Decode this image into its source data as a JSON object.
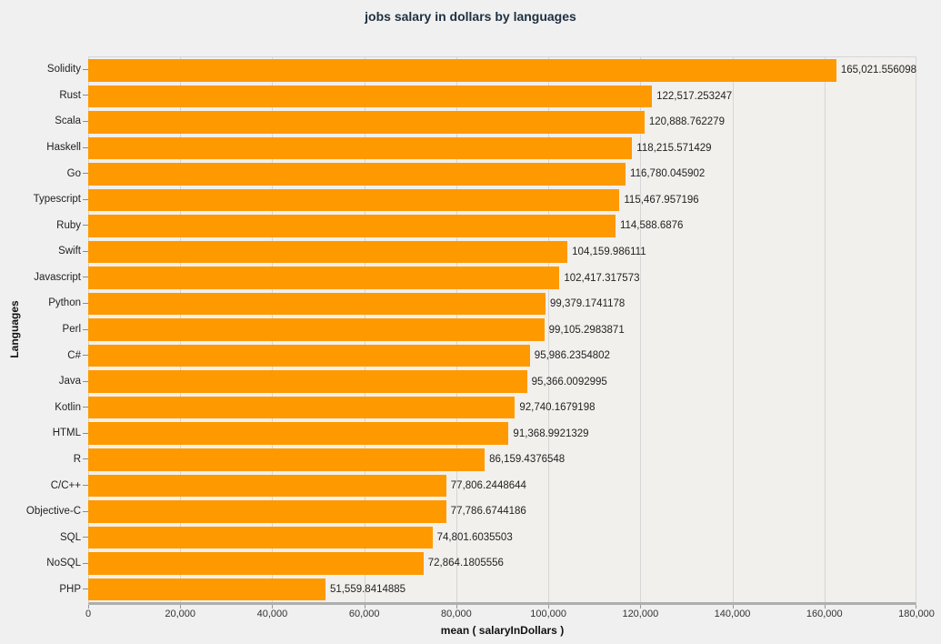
{
  "colors": {
    "bar": "#ff9900",
    "page_background": "#f0f0f0",
    "plot_background": "#f2f0ed",
    "gridline": "#d6d6d6",
    "axis_line": "#aeaeae",
    "title_text": "#1e3040",
    "label_text": "#222222"
  },
  "chart_data": {
    "type": "bar",
    "orientation": "horizontal",
    "title": "jobs salary in dollars by languages",
    "xlabel": "mean ( salaryInDollars )",
    "ylabel": "Languages",
    "xlim": [
      0,
      180000
    ],
    "grid": true,
    "legend": "none",
    "x_ticks": [
      0,
      20000,
      40000,
      60000,
      80000,
      100000,
      120000,
      140000,
      160000,
      180000
    ],
    "x_tick_labels": [
      "0",
      "20,000",
      "40,000",
      "60,000",
      "80,000",
      "100,000",
      "120,000",
      "140,000",
      "160,000",
      "180,000"
    ],
    "categories": [
      "Solidity",
      "Rust",
      "Scala",
      "Haskell",
      "Go",
      "Typescript",
      "Ruby",
      "Swift",
      "Javascript",
      "Python",
      "Perl",
      "C#",
      "Java",
      "Kotlin",
      "HTML",
      "R",
      "C/C++",
      "Objective-C",
      "SQL",
      "NoSQL",
      "PHP"
    ],
    "values": [
      165021.556098,
      122517.253247,
      120888.762279,
      118215.571429,
      116780.045902,
      115467.957196,
      114588.6876,
      104159.986111,
      102417.317573,
      99379.1741178,
      99105.2983871,
      95986.2354802,
      95366.0092995,
      92740.1679198,
      91368.9921329,
      86159.4376548,
      77806.2448644,
      77786.6744186,
      74801.6035503,
      72864.1805556,
      51559.8414885
    ],
    "value_labels": [
      "165,021.556098",
      "122,517.253247",
      "120,888.762279",
      "118,215.571429",
      "116,780.045902",
      "115,467.957196",
      "114,588.6876",
      "104,159.986111",
      "102,417.317573",
      "99,379.1741178",
      "99,105.2983871",
      "95,986.2354802",
      "95,366.0092995",
      "92,740.1679198",
      "91,368.9921329",
      "86,159.4376548",
      "77,806.2448644",
      "77,786.6744186",
      "74,801.6035503",
      "72,864.1805556",
      "51,559.8414885"
    ]
  }
}
